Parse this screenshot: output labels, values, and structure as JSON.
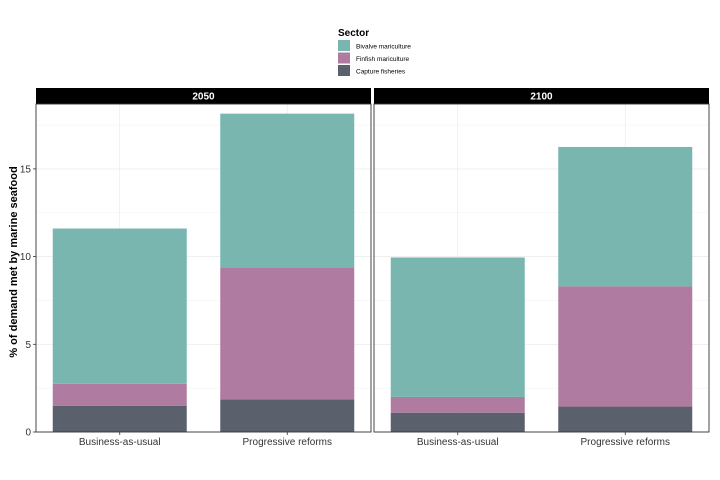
{
  "chart_data": {
    "type": "bar",
    "stacked": true,
    "ylabel": "% of demand met by marine seafood",
    "xlabel": "",
    "ylim": [
      0,
      18.7
    ],
    "yticks": [
      0,
      5,
      10,
      15
    ],
    "grid": true,
    "legend": {
      "title": "Sector",
      "position": "top",
      "entries": [
        {
          "name": "Bivalve mariculture",
          "color": "#79B6B0"
        },
        {
          "name": "Finfish mariculture",
          "color": "#B07BA0"
        },
        {
          "name": "Capture fisheries",
          "color": "#5A616D"
        }
      ]
    },
    "panels": [
      {
        "title": "2050",
        "categories": [
          "Business-as-usual",
          "Progressive reforms"
        ],
        "series": [
          {
            "name": "Capture fisheries",
            "values": [
              1.5,
              1.85
            ]
          },
          {
            "name": "Finfish mariculture",
            "values": [
              1.25,
              7.5
            ]
          },
          {
            "name": "Bivalve mariculture",
            "values": [
              8.85,
              8.8
            ]
          }
        ]
      },
      {
        "title": "2100",
        "categories": [
          "Business-as-usual",
          "Progressive reforms"
        ],
        "series": [
          {
            "name": "Capture fisheries",
            "values": [
              1.1,
              1.45
            ]
          },
          {
            "name": "Finfish mariculture",
            "values": [
              0.9,
              6.85
            ]
          },
          {
            "name": "Bivalve mariculture",
            "values": [
              7.95,
              7.95
            ]
          }
        ]
      }
    ]
  }
}
